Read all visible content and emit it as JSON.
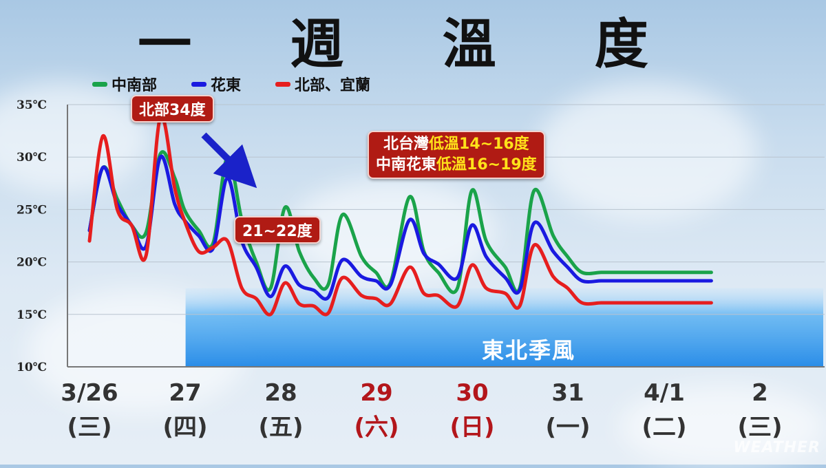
{
  "title": "一 週 溫 度",
  "legend": [
    {
      "label": "中南部",
      "color": "#1aa34a"
    },
    {
      "label": "花東",
      "color": "#1a1ae0"
    },
    {
      "label": "北部、宜蘭",
      "color": "#e61e1e"
    }
  ],
  "callouts": {
    "peak": "北部34度",
    "drop": "21~22度",
    "lows_line1_a": "北台灣",
    "lows_line1_b": "低溫14~16度",
    "lows_line2_a": "中南花東",
    "lows_line2_b": "低溫16~19度"
  },
  "band_label": "東北季風",
  "watermark": "WEATHER",
  "chart_data": {
    "type": "line",
    "y_tick_labels": [
      "35℃",
      "30℃",
      "25℃",
      "20℃",
      "15℃",
      "10℃"
    ],
    "ylim": [
      10,
      35
    ],
    "grid": true,
    "legend_position": "top-left",
    "x_dates": [
      "3/26",
      "27",
      "28",
      "29",
      "30",
      "31",
      "4/1",
      "2"
    ],
    "x_weekdays": [
      "(三)",
      "(四)",
      "(五)",
      "(六)",
      "(日)",
      "(一)",
      "(二)",
      "(三)"
    ],
    "x_label_colors": [
      "#333333",
      "#333333",
      "#333333",
      "#b3161b",
      "#b3161b",
      "#333333",
      "#333333",
      "#333333"
    ],
    "x": [
      3.26,
      3.4,
      3.55,
      3.7,
      3.85,
      4.0,
      4.15,
      4.25,
      4.4,
      4.55,
      4.7,
      4.85,
      5.0,
      5.15,
      5.3,
      5.45,
      5.6,
      5.75,
      5.9,
      6.1,
      6.25,
      6.4,
      6.6,
      6.75,
      6.9,
      7.1,
      7.25,
      7.4,
      7.6,
      7.75,
      7.9,
      8.1,
      8.25,
      8.4,
      8.6,
      8.75,
      8.9,
      9.1,
      9.25,
      9.4,
      9.6,
      9.75
    ],
    "series": [
      {
        "name": "中南部",
        "color": "#1aa34a",
        "values": [
          23,
          29,
          26,
          23.5,
          22.8,
          30.3,
          28,
          25,
          23,
          21.8,
          30,
          24,
          20,
          17.5,
          25.2,
          21,
          18.5,
          17.8,
          24.5,
          20.5,
          19,
          18,
          26.2,
          21,
          19,
          17.5,
          26.8,
          22,
          19.5,
          17.5,
          26.8,
          22.5,
          20.5,
          19,
          19,
          19,
          19,
          19,
          19,
          19,
          19,
          19
        ]
      },
      {
        "name": "花東",
        "color": "#1a1ae0",
        "values": [
          23,
          29,
          25.5,
          23.5,
          21.5,
          30,
          25.5,
          24,
          22.5,
          21.3,
          28,
          22,
          19.5,
          16.7,
          19.6,
          17.8,
          17.3,
          16.6,
          20.2,
          18.6,
          18.2,
          17.8,
          24,
          20.8,
          19.8,
          18.5,
          23.5,
          20.5,
          18.5,
          17.3,
          23.7,
          21,
          19.5,
          18.2,
          18.2,
          18.2,
          18.2,
          18.2,
          18.2,
          18.2,
          18.2,
          18.2
        ]
      },
      {
        "name": "北部、宜蘭",
        "color": "#e61e1e",
        "values": [
          22,
          32,
          25,
          23.5,
          20.6,
          33.8,
          27,
          24,
          21,
          21.4,
          22,
          17.5,
          16.5,
          15,
          18,
          16,
          15.8,
          15.1,
          18.5,
          16.8,
          16.5,
          16,
          19.5,
          17,
          16.8,
          15.8,
          19.7,
          17.5,
          17,
          15.8,
          21.6,
          18.6,
          17.5,
          16.1,
          16.1,
          16.1,
          16.1,
          16.1,
          16.1,
          16.1,
          16.1,
          16.1
        ]
      }
    ],
    "band": {
      "label": "東北季風",
      "x_start": 4.5
    }
  }
}
